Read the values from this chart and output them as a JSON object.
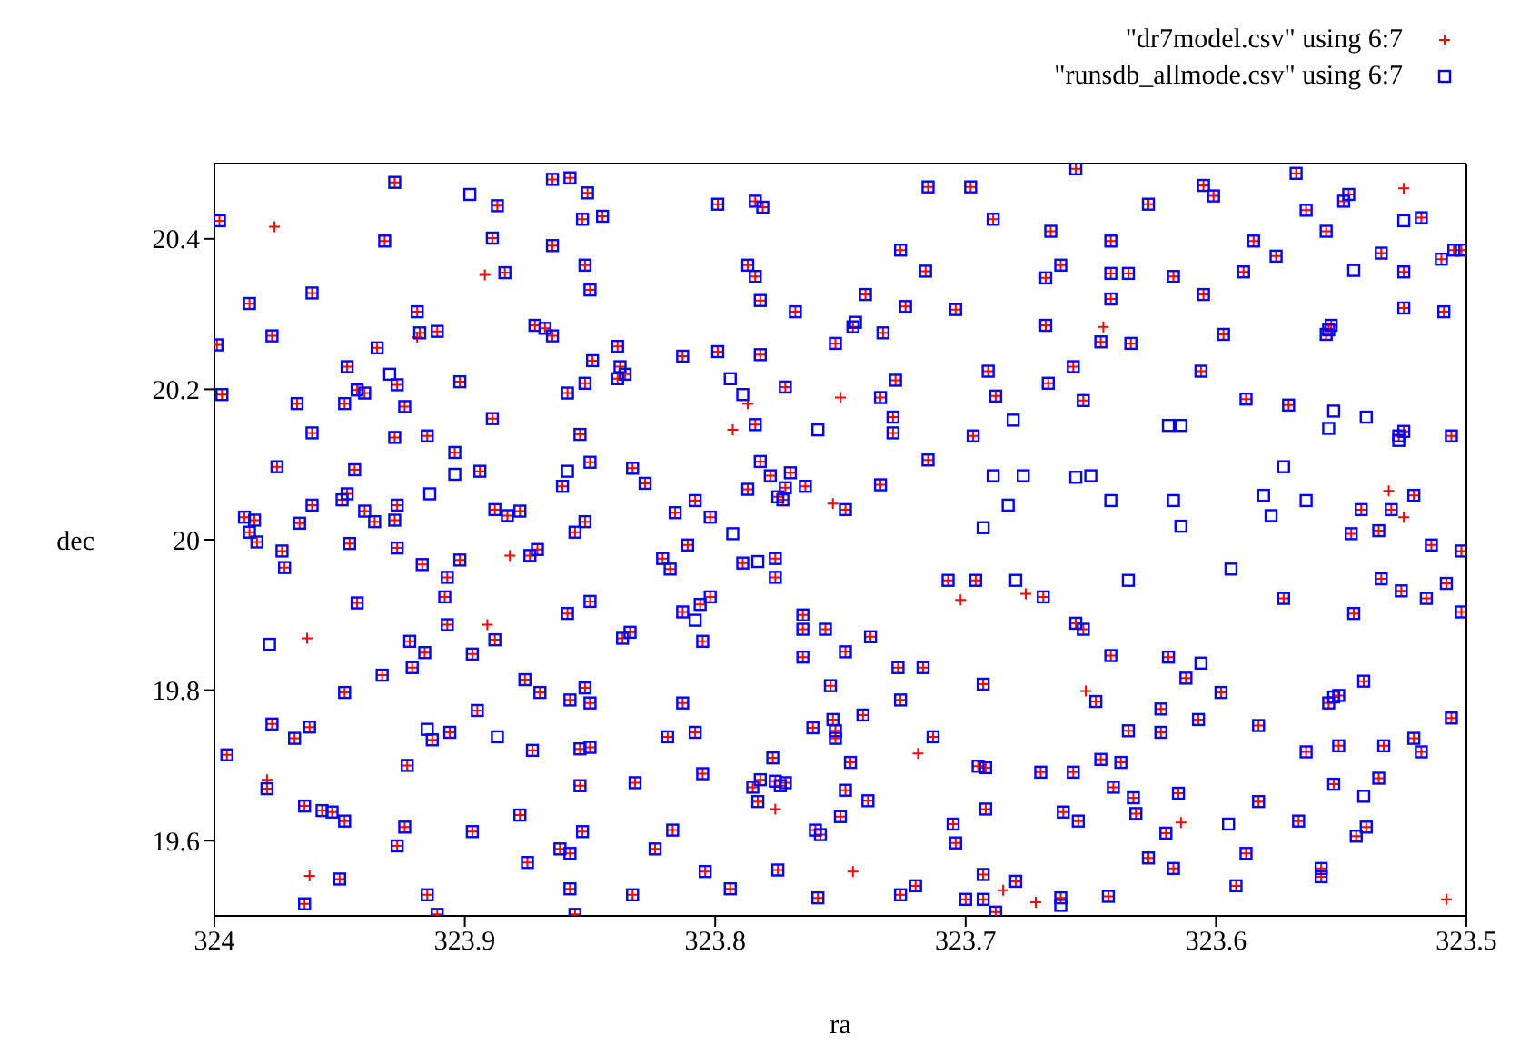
{
  "chart_data": {
    "type": "scatter",
    "xlabel": "ra",
    "ylabel": "dec",
    "xlim": [
      324,
      323.5
    ],
    "ylim": [
      19.5,
      20.5
    ],
    "xticks": [
      324,
      323.9,
      323.8,
      323.7,
      323.6,
      323.5
    ],
    "yticks": [
      19.6,
      19.8,
      20,
      20.2,
      20.4
    ],
    "legend": "top right",
    "series": [
      {
        "name": "\"dr7model.csv\" using 6:7",
        "color": "#ff0000",
        "marker": "cross",
        "x": [
          323.928,
          323.865,
          323.858,
          323.851,
          323.887,
          323.998,
          323.845,
          323.853,
          323.932,
          323.889,
          323.865,
          323.884,
          323.852,
          323.85,
          323.961,
          323.986,
          323.919,
          323.872,
          323.868,
          323.865,
          323.977,
          323.918,
          323.911,
          323.999,
          323.935,
          323.839,
          323.849,
          323.947,
          323.838,
          323.836,
          323.839,
          323.927,
          323.902,
          323.852,
          323.859,
          323.997,
          323.943,
          323.94,
          323.967,
          323.948,
          323.924,
          323.889,
          323.961,
          323.928,
          323.915,
          323.854,
          323.904,
          323.85,
          323.975,
          323.944,
          323.894,
          323.861,
          323.833,
          323.947,
          323.949,
          323.961,
          323.927,
          323.888,
          323.988,
          323.984,
          323.966,
          323.94,
          323.936,
          323.928,
          323.883,
          323.878,
          323.852,
          323.986,
          323.856,
          323.715,
          323.698,
          323.799,
          323.784,
          323.781,
          323.689,
          323.726,
          323.716,
          323.787,
          323.784,
          323.74,
          323.782,
          323.768,
          323.724,
          323.704,
          323.745,
          323.733,
          323.752,
          323.813,
          323.799,
          323.782,
          323.691,
          323.772,
          323.728,
          323.734,
          323.688,
          323.784,
          323.729,
          323.729,
          323.697,
          323.828,
          323.782,
          323.778,
          323.77,
          323.787,
          323.772,
          323.764,
          323.775,
          323.773,
          323.734,
          323.715,
          323.748,
          323.808,
          323.816,
          323.802,
          323.656,
          323.568,
          323.627,
          323.605,
          323.601,
          323.547,
          323.549,
          323.564,
          323.518,
          323.666,
          323.556,
          323.642,
          323.585,
          323.576,
          323.534,
          323.505,
          323.502,
          323.51,
          323.662,
          323.668,
          323.642,
          323.635,
          323.617,
          323.589,
          323.525,
          323.642,
          323.605,
          323.525,
          323.509,
          323.668,
          323.646,
          323.634,
          323.597,
          323.554,
          323.555,
          323.556,
          323.657,
          323.606,
          323.667,
          323.653,
          323.588,
          323.571,
          323.527,
          323.525,
          323.506,
          323.521,
          323.53,
          323.542,
          323.546,
          323.535,
          323.983,
          323.973,
          323.946,
          323.927,
          323.972,
          323.917,
          323.902,
          323.874,
          323.871,
          323.907,
          323.908,
          323.943,
          323.85,
          323.859,
          323.907,
          323.922,
          323.916,
          323.897,
          323.888,
          323.834,
          323.837,
          323.933,
          323.921,
          323.876,
          323.87,
          323.852,
          323.858,
          323.85,
          323.948,
          323.895,
          323.977,
          323.962,
          323.968,
          323.913,
          323.906,
          323.873,
          323.854,
          323.85,
          323.995,
          323.923,
          323.854,
          323.979,
          323.964,
          323.957,
          323.953,
          323.948,
          323.878,
          323.924,
          323.897,
          323.853,
          323.927,
          323.862,
          323.858,
          323.875,
          323.95,
          323.915,
          323.858,
          323.964,
          323.911,
          323.856,
          323.833,
          323.811,
          323.821,
          323.818,
          323.789,
          323.776,
          323.776,
          323.802,
          323.806,
          323.813,
          323.805,
          323.765,
          323.765,
          323.756,
          323.738,
          323.748,
          323.765,
          323.727,
          323.717,
          323.707,
          323.696,
          323.669,
          323.693,
          323.754,
          323.726,
          323.813,
          323.808,
          323.819,
          323.753,
          323.761,
          323.752,
          323.752,
          323.741,
          323.713,
          323.777,
          323.746,
          323.695,
          323.692,
          323.67,
          323.832,
          323.805,
          323.782,
          323.785,
          323.776,
          323.774,
          323.772,
          323.748,
          323.739,
          323.783,
          323.692,
          323.705,
          323.704,
          323.75,
          323.76,
          323.758,
          323.817,
          323.824,
          323.804,
          323.775,
          323.693,
          323.68,
          323.794,
          323.759,
          323.726,
          323.72,
          323.7,
          323.693,
          323.688,
          323.514,
          323.502,
          323.534,
          323.508,
          323.526,
          323.516,
          323.573,
          323.502,
          323.545,
          323.656,
          323.653,
          323.642,
          323.619,
          323.612,
          323.648,
          323.598,
          323.541,
          323.553,
          323.551,
          323.555,
          323.506,
          323.622,
          323.607,
          323.583,
          323.635,
          323.622,
          323.564,
          323.551,
          323.533,
          323.521,
          323.518,
          323.646,
          323.638,
          323.657,
          323.535,
          323.553,
          323.641,
          323.615,
          323.633,
          323.583,
          323.661,
          323.655,
          323.632,
          323.567,
          323.54,
          323.544,
          323.62,
          323.588,
          323.627,
          323.617,
          323.558,
          323.558,
          323.592,
          323.662,
          323.643,
          323.976,
          323.892,
          323.919,
          323.787,
          323.75,
          323.793,
          323.753,
          323.525,
          323.645,
          323.531,
          323.525,
          323.882,
          323.891,
          323.963,
          323.979,
          323.962,
          323.702,
          323.676,
          323.719,
          323.776,
          323.745,
          323.685,
          323.672,
          323.652,
          323.614,
          323.508
        ],
        "values": [
          20.475,
          20.479,
          20.481,
          20.461,
          20.444,
          20.424,
          20.43,
          20.426,
          20.397,
          20.401,
          20.391,
          20.355,
          20.365,
          20.332,
          20.328,
          20.314,
          20.303,
          20.285,
          20.281,
          20.271,
          20.271,
          20.275,
          20.277,
          20.259,
          20.255,
          20.257,
          20.238,
          20.23,
          20.23,
          20.22,
          20.214,
          20.206,
          20.21,
          20.208,
          20.195,
          20.193,
          20.199,
          20.195,
          20.181,
          20.181,
          20.177,
          20.161,
          20.142,
          20.136,
          20.138,
          20.14,
          20.116,
          20.103,
          20.097,
          20.093,
          20.091,
          20.071,
          20.095,
          20.061,
          20.053,
          20.046,
          20.046,
          20.04,
          20.03,
          20.026,
          20.022,
          20.038,
          20.024,
          20.026,
          20.032,
          20.038,
          20.024,
          20.01,
          20.01,
          20.469,
          20.469,
          20.446,
          20.45,
          20.442,
          20.426,
          20.385,
          20.357,
          20.365,
          20.35,
          20.326,
          20.318,
          20.303,
          20.31,
          20.306,
          20.283,
          20.275,
          20.261,
          20.244,
          20.25,
          20.246,
          20.224,
          20.203,
          20.212,
          20.189,
          20.191,
          20.153,
          20.163,
          20.142,
          20.138,
          20.075,
          20.104,
          20.085,
          20.089,
          20.067,
          20.069,
          20.071,
          20.057,
          20.053,
          20.073,
          20.106,
          20.04,
          20.052,
          20.036,
          20.03,
          20.493,
          20.487,
          20.446,
          20.471,
          20.457,
          20.459,
          20.45,
          20.438,
          20.428,
          20.41,
          20.41,
          20.397,
          20.397,
          20.377,
          20.381,
          20.385,
          20.385,
          20.373,
          20.365,
          20.348,
          20.354,
          20.354,
          20.35,
          20.356,
          20.356,
          20.32,
          20.326,
          20.308,
          20.303,
          20.285,
          20.263,
          20.261,
          20.273,
          20.285,
          20.279,
          20.273,
          20.23,
          20.224,
          20.208,
          20.185,
          20.187,
          20.179,
          20.138,
          20.144,
          20.138,
          20.059,
          20.04,
          20.04,
          20.008,
          20.012,
          19.997,
          19.985,
          19.995,
          19.989,
          19.963,
          19.967,
          19.973,
          19.979,
          19.987,
          19.95,
          19.924,
          19.916,
          19.918,
          19.902,
          19.887,
          19.865,
          19.85,
          19.848,
          19.867,
          19.877,
          19.869,
          19.82,
          19.83,
          19.814,
          19.797,
          19.803,
          19.787,
          19.783,
          19.797,
          19.773,
          19.755,
          19.751,
          19.736,
          19.734,
          19.744,
          19.72,
          19.722,
          19.724,
          19.714,
          19.7,
          19.673,
          19.669,
          19.646,
          19.64,
          19.638,
          19.626,
          19.634,
          19.618,
          19.612,
          19.612,
          19.593,
          19.589,
          19.583,
          19.571,
          19.549,
          19.528,
          19.536,
          19.516,
          19.502,
          19.502,
          19.528,
          19.993,
          19.975,
          19.961,
          19.969,
          19.975,
          19.95,
          19.924,
          19.914,
          19.904,
          19.865,
          19.9,
          19.881,
          19.881,
          19.871,
          19.851,
          19.844,
          19.83,
          19.83,
          19.946,
          19.946,
          19.924,
          19.808,
          19.806,
          19.787,
          19.783,
          19.744,
          19.738,
          19.761,
          19.75,
          19.746,
          19.736,
          19.767,
          19.738,
          19.71,
          19.704,
          19.699,
          19.697,
          19.691,
          19.677,
          19.689,
          19.681,
          19.671,
          19.679,
          19.673,
          19.677,
          19.667,
          19.653,
          19.652,
          19.642,
          19.622,
          19.597,
          19.632,
          19.614,
          19.608,
          19.614,
          19.589,
          19.559,
          19.561,
          19.555,
          19.546,
          19.536,
          19.524,
          19.528,
          19.54,
          19.522,
          19.522,
          19.505,
          19.993,
          19.985,
          19.948,
          19.942,
          19.932,
          19.922,
          19.922,
          19.904,
          19.902,
          19.889,
          19.881,
          19.846,
          19.844,
          19.816,
          19.785,
          19.797,
          19.812,
          19.791,
          19.793,
          19.783,
          19.763,
          19.775,
          19.761,
          19.753,
          19.746,
          19.744,
          19.718,
          19.726,
          19.726,
          19.736,
          19.718,
          19.708,
          19.704,
          19.691,
          19.683,
          19.675,
          19.671,
          19.663,
          19.657,
          19.652,
          19.638,
          19.626,
          19.636,
          19.626,
          19.618,
          19.606,
          19.61,
          19.583,
          19.577,
          19.563,
          19.563,
          19.552,
          19.54,
          19.524,
          19.526,
          20.416,
          20.352,
          20.269,
          20.181,
          20.189,
          20.146,
          20.048,
          20.467,
          20.283,
          20.065,
          20.03,
          19.979,
          19.887,
          19.869,
          19.681,
          19.553,
          19.92,
          19.928,
          19.716,
          19.642,
          19.559,
          19.534,
          19.518,
          19.799,
          19.624,
          19.522
        ]
      },
      {
        "name": "\"runsdb_allmode.csv\" using 6:7",
        "color": "#0000ff",
        "marker": "square",
        "x": [
          323.928,
          323.865,
          323.858,
          323.851,
          323.887,
          323.998,
          323.845,
          323.853,
          323.932,
          323.889,
          323.865,
          323.884,
          323.852,
          323.85,
          323.961,
          323.986,
          323.919,
          323.872,
          323.868,
          323.865,
          323.977,
          323.918,
          323.911,
          323.999,
          323.935,
          323.839,
          323.849,
          323.947,
          323.838,
          323.836,
          323.839,
          323.927,
          323.902,
          323.852,
          323.859,
          323.997,
          323.943,
          323.94,
          323.967,
          323.948,
          323.924,
          323.889,
          323.961,
          323.928,
          323.915,
          323.854,
          323.904,
          323.85,
          323.975,
          323.944,
          323.894,
          323.861,
          323.833,
          323.947,
          323.949,
          323.961,
          323.927,
          323.888,
          323.988,
          323.984,
          323.966,
          323.94,
          323.936,
          323.928,
          323.883,
          323.878,
          323.852,
          323.986,
          323.856,
          323.715,
          323.698,
          323.799,
          323.784,
          323.781,
          323.689,
          323.726,
          323.716,
          323.787,
          323.784,
          323.74,
          323.782,
          323.768,
          323.724,
          323.704,
          323.745,
          323.733,
          323.752,
          323.813,
          323.799,
          323.782,
          323.691,
          323.772,
          323.728,
          323.734,
          323.688,
          323.784,
          323.729,
          323.729,
          323.697,
          323.828,
          323.782,
          323.778,
          323.77,
          323.787,
          323.772,
          323.764,
          323.775,
          323.773,
          323.734,
          323.715,
          323.748,
          323.808,
          323.816,
          323.802,
          323.656,
          323.568,
          323.627,
          323.605,
          323.601,
          323.547,
          323.549,
          323.564,
          323.518,
          323.666,
          323.556,
          323.642,
          323.585,
          323.576,
          323.534,
          323.505,
          323.502,
          323.51,
          323.662,
          323.668,
          323.642,
          323.635,
          323.617,
          323.589,
          323.525,
          323.642,
          323.605,
          323.525,
          323.509,
          323.668,
          323.646,
          323.634,
          323.597,
          323.554,
          323.555,
          323.556,
          323.657,
          323.606,
          323.667,
          323.653,
          323.588,
          323.571,
          323.527,
          323.525,
          323.506,
          323.521,
          323.53,
          323.542,
          323.546,
          323.535,
          323.983,
          323.973,
          323.946,
          323.927,
          323.972,
          323.917,
          323.902,
          323.874,
          323.871,
          323.907,
          323.908,
          323.943,
          323.85,
          323.859,
          323.907,
          323.922,
          323.916,
          323.897,
          323.888,
          323.834,
          323.837,
          323.933,
          323.921,
          323.876,
          323.87,
          323.852,
          323.858,
          323.85,
          323.948,
          323.895,
          323.977,
          323.962,
          323.968,
          323.913,
          323.906,
          323.873,
          323.854,
          323.85,
          323.995,
          323.923,
          323.854,
          323.979,
          323.964,
          323.957,
          323.953,
          323.948,
          323.878,
          323.924,
          323.897,
          323.853,
          323.927,
          323.862,
          323.858,
          323.875,
          323.95,
          323.915,
          323.858,
          323.964,
          323.911,
          323.856,
          323.833,
          323.811,
          323.821,
          323.818,
          323.789,
          323.776,
          323.776,
          323.802,
          323.806,
          323.813,
          323.805,
          323.765,
          323.765,
          323.756,
          323.738,
          323.748,
          323.765,
          323.727,
          323.717,
          323.707,
          323.696,
          323.669,
          323.693,
          323.754,
          323.726,
          323.813,
          323.808,
          323.819,
          323.753,
          323.761,
          323.752,
          323.752,
          323.741,
          323.713,
          323.777,
          323.746,
          323.695,
          323.692,
          323.67,
          323.832,
          323.805,
          323.782,
          323.785,
          323.776,
          323.774,
          323.772,
          323.748,
          323.739,
          323.783,
          323.692,
          323.705,
          323.704,
          323.75,
          323.76,
          323.758,
          323.817,
          323.824,
          323.804,
          323.775,
          323.693,
          323.68,
          323.794,
          323.759,
          323.726,
          323.72,
          323.7,
          323.693,
          323.688,
          323.514,
          323.502,
          323.534,
          323.508,
          323.526,
          323.516,
          323.573,
          323.502,
          323.545,
          323.656,
          323.653,
          323.642,
          323.619,
          323.612,
          323.648,
          323.598,
          323.541,
          323.553,
          323.551,
          323.555,
          323.506,
          323.622,
          323.607,
          323.583,
          323.635,
          323.622,
          323.564,
          323.551,
          323.533,
          323.521,
          323.518,
          323.646,
          323.638,
          323.657,
          323.535,
          323.553,
          323.641,
          323.615,
          323.633,
          323.583,
          323.661,
          323.655,
          323.632,
          323.567,
          323.54,
          323.544,
          323.62,
          323.588,
          323.627,
          323.617,
          323.558,
          323.558,
          323.592,
          323.662,
          323.643,
          323.898,
          323.93,
          323.904,
          323.859,
          323.914,
          323.744,
          323.794,
          323.789,
          323.759,
          323.681,
          323.689,
          323.677,
          323.683,
          323.793,
          323.693,
          323.525,
          323.545,
          323.553,
          323.54,
          323.555,
          323.619,
          323.614,
          323.527,
          323.573,
          323.656,
          323.65,
          323.642,
          323.617,
          323.581,
          323.564,
          323.578,
          323.614,
          323.978,
          323.915,
          323.887,
          323.783,
          323.808,
          323.68,
          323.594,
          323.635,
          323.606,
          323.541,
          323.595,
          323.662
        ],
        "values": [
          20.475,
          20.479,
          20.481,
          20.461,
          20.444,
          20.424,
          20.43,
          20.426,
          20.397,
          20.401,
          20.391,
          20.355,
          20.365,
          20.332,
          20.328,
          20.314,
          20.303,
          20.285,
          20.281,
          20.271,
          20.271,
          20.275,
          20.277,
          20.259,
          20.255,
          20.257,
          20.238,
          20.23,
          20.23,
          20.22,
          20.214,
          20.206,
          20.21,
          20.208,
          20.195,
          20.193,
          20.199,
          20.195,
          20.181,
          20.181,
          20.177,
          20.161,
          20.142,
          20.136,
          20.138,
          20.14,
          20.116,
          20.103,
          20.097,
          20.093,
          20.091,
          20.071,
          20.095,
          20.061,
          20.053,
          20.046,
          20.046,
          20.04,
          20.03,
          20.026,
          20.022,
          20.038,
          20.024,
          20.026,
          20.032,
          20.038,
          20.024,
          20.01,
          20.01,
          20.469,
          20.469,
          20.446,
          20.45,
          20.442,
          20.426,
          20.385,
          20.357,
          20.365,
          20.35,
          20.326,
          20.318,
          20.303,
          20.31,
          20.306,
          20.283,
          20.275,
          20.261,
          20.244,
          20.25,
          20.246,
          20.224,
          20.203,
          20.212,
          20.189,
          20.191,
          20.153,
          20.163,
          20.142,
          20.138,
          20.075,
          20.104,
          20.085,
          20.089,
          20.067,
          20.069,
          20.071,
          20.057,
          20.053,
          20.073,
          20.106,
          20.04,
          20.052,
          20.036,
          20.03,
          20.493,
          20.487,
          20.446,
          20.471,
          20.457,
          20.459,
          20.45,
          20.438,
          20.428,
          20.41,
          20.41,
          20.397,
          20.397,
          20.377,
          20.381,
          20.385,
          20.385,
          20.373,
          20.365,
          20.348,
          20.354,
          20.354,
          20.35,
          20.356,
          20.356,
          20.32,
          20.326,
          20.308,
          20.303,
          20.285,
          20.263,
          20.261,
          20.273,
          20.285,
          20.279,
          20.273,
          20.23,
          20.224,
          20.208,
          20.185,
          20.187,
          20.179,
          20.138,
          20.144,
          20.138,
          20.059,
          20.04,
          20.04,
          20.008,
          20.012,
          19.997,
          19.985,
          19.995,
          19.989,
          19.963,
          19.967,
          19.973,
          19.979,
          19.987,
          19.95,
          19.924,
          19.916,
          19.918,
          19.902,
          19.887,
          19.865,
          19.85,
          19.848,
          19.867,
          19.877,
          19.869,
          19.82,
          19.83,
          19.814,
          19.797,
          19.803,
          19.787,
          19.783,
          19.797,
          19.773,
          19.755,
          19.751,
          19.736,
          19.734,
          19.744,
          19.72,
          19.722,
          19.724,
          19.714,
          19.7,
          19.673,
          19.669,
          19.646,
          19.64,
          19.638,
          19.626,
          19.634,
          19.618,
          19.612,
          19.612,
          19.593,
          19.589,
          19.583,
          19.571,
          19.549,
          19.528,
          19.536,
          19.516,
          19.502,
          19.502,
          19.528,
          19.993,
          19.975,
          19.961,
          19.969,
          19.975,
          19.95,
          19.924,
          19.914,
          19.904,
          19.865,
          19.9,
          19.881,
          19.881,
          19.871,
          19.851,
          19.844,
          19.83,
          19.83,
          19.946,
          19.946,
          19.924,
          19.808,
          19.806,
          19.787,
          19.783,
          19.744,
          19.738,
          19.761,
          19.75,
          19.746,
          19.736,
          19.767,
          19.738,
          19.71,
          19.704,
          19.699,
          19.697,
          19.691,
          19.677,
          19.689,
          19.681,
          19.671,
          19.679,
          19.673,
          19.677,
          19.667,
          19.653,
          19.652,
          19.642,
          19.622,
          19.597,
          19.632,
          19.614,
          19.608,
          19.614,
          19.589,
          19.559,
          19.561,
          19.555,
          19.546,
          19.536,
          19.524,
          19.528,
          19.54,
          19.522,
          19.522,
          19.505,
          19.993,
          19.985,
          19.948,
          19.942,
          19.932,
          19.922,
          19.922,
          19.904,
          19.902,
          19.889,
          19.881,
          19.846,
          19.844,
          19.816,
          19.785,
          19.797,
          19.812,
          19.791,
          19.793,
          19.783,
          19.763,
          19.775,
          19.761,
          19.753,
          19.746,
          19.744,
          19.718,
          19.726,
          19.726,
          19.736,
          19.718,
          19.708,
          19.704,
          19.691,
          19.683,
          19.675,
          19.671,
          19.663,
          19.657,
          19.652,
          19.638,
          19.626,
          19.636,
          19.626,
          19.618,
          19.606,
          19.61,
          19.583,
          19.577,
          19.563,
          19.563,
          19.552,
          19.54,
          19.524,
          19.526,
          20.459,
          20.22,
          20.087,
          20.091,
          20.061,
          20.289,
          20.214,
          20.193,
          20.146,
          20.159,
          20.085,
          20.085,
          20.046,
          20.008,
          20.016,
          20.424,
          20.358,
          20.171,
          20.163,
          20.148,
          20.152,
          20.152,
          20.132,
          20.097,
          20.083,
          20.085,
          20.052,
          20.052,
          20.059,
          20.052,
          20.032,
          20.018,
          19.861,
          19.748,
          19.738,
          19.971,
          19.893,
          19.946,
          19.961,
          19.946,
          19.836,
          19.659,
          19.622,
          19.514
        ]
      }
    ]
  }
}
